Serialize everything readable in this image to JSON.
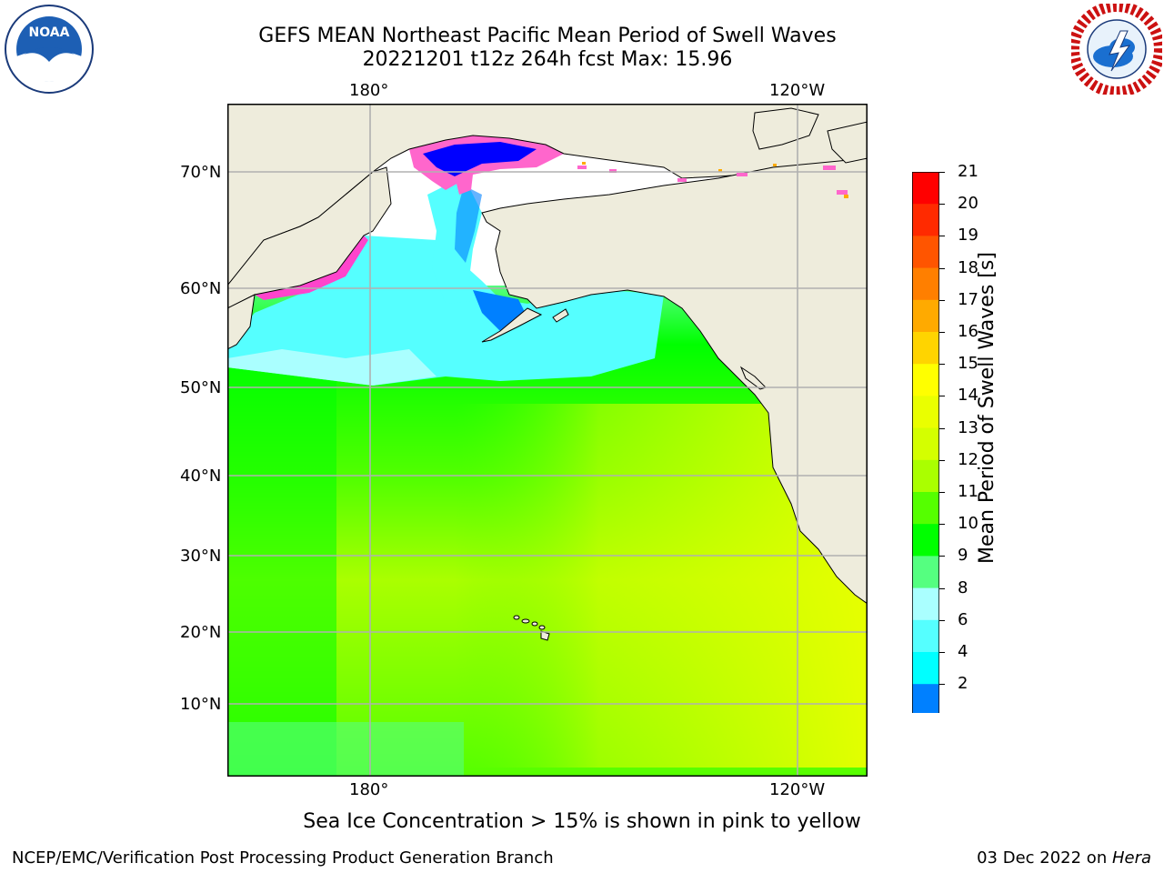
{
  "title": {
    "line1": "GEFS MEAN Northeast Pacific Mean Period of Swell Waves",
    "line2": "20221201 t12z 264h fcst   Max: 15.96"
  },
  "logos": {
    "left": {
      "icon": "noaa-logo",
      "text": "NOAA",
      "ring_text": "NATIONAL OCEANIC AND ATMOSPHERIC ADMINISTRATION · U.S. DEPARTMENT OF COMMERCE"
    },
    "right": {
      "icon": "nws-logo",
      "ring_text": "NATIONAL WEATHER SERVICE"
    }
  },
  "map": {
    "lon_labels": [
      "180°",
      "120°W"
    ],
    "lat_labels": [
      "70°N",
      "60°N",
      "50°N",
      "40°N",
      "30°N",
      "20°N",
      "10°N"
    ],
    "gridlines": true,
    "land_color": "#eeecdc",
    "coastline_color": "#000000"
  },
  "colorbar": {
    "label": "Mean Period of Swell Waves [s]",
    "ticks": [
      "21",
      "20",
      "19",
      "18",
      "17",
      "16",
      "15",
      "14",
      "13",
      "12",
      "11",
      "10",
      "9",
      "8",
      "6",
      "4",
      "2"
    ],
    "colors_top_to_bottom": [
      "#ff0000",
      "#ff2a00",
      "#ff5500",
      "#ff7f00",
      "#ffaa00",
      "#ffd400",
      "#ffff00",
      "#eaff00",
      "#d4ff00",
      "#aaff00",
      "#55ff00",
      "#00ff00",
      "#55ff80",
      "#aaffff",
      "#55ffff",
      "#00ffff",
      "#0080ff"
    ],
    "under_color": "#0000ff"
  },
  "note": "Sea Ice Concentration > 15% is shown in pink to yellow",
  "footer": {
    "left": "NCEP/EMC/Verification Post Processing Product Generation Branch",
    "right_date": "03 Dec 2022 on ",
    "right_host": "Hera"
  }
}
